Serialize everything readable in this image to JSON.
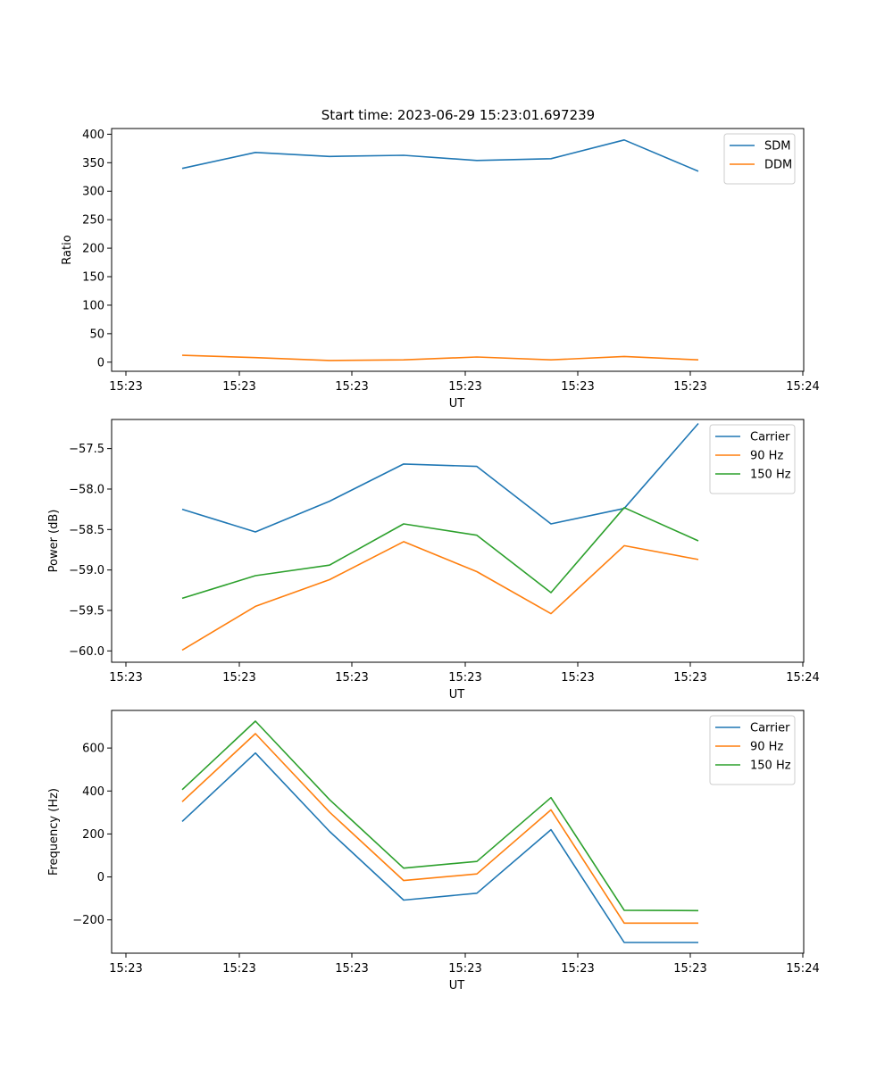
{
  "figure": {
    "title": "Start time: 2023-06-29 15:23:01.697239"
  },
  "chart_data": [
    {
      "type": "line",
      "title": "Start time: 2023-06-29 15:23:01.697239",
      "xlabel": "UT",
      "ylabel": "Ratio",
      "x_tick_labels": [
        "15:23",
        "15:23",
        "15:23",
        "15:23",
        "15:23",
        "15:23",
        "15:24"
      ],
      "ylim": [
        -16,
        410
      ],
      "yticks": [
        0,
        50,
        100,
        150,
        200,
        250,
        300,
        350,
        400
      ],
      "grid": false,
      "legend_position": "upper-right",
      "series": [
        {
          "name": "SDM",
          "color": "#1f77b4",
          "values": [
            340,
            368,
            361,
            363,
            354,
            357,
            390,
            335
          ]
        },
        {
          "name": "DDM",
          "color": "#ff7f0e",
          "values": [
            12,
            8,
            3,
            4,
            9,
            4,
            10,
            4
          ]
        }
      ]
    },
    {
      "type": "line",
      "title": "",
      "xlabel": "UT",
      "ylabel": "Power (dB)",
      "x_tick_labels": [
        "15:23",
        "15:23",
        "15:23",
        "15:23",
        "15:23",
        "15:23",
        "15:24"
      ],
      "ylim": [
        -60.14,
        -57.14
      ],
      "yticks": [
        -60.0,
        -59.5,
        -59.0,
        -58.5,
        -58.0,
        -57.5
      ],
      "ytick_labels": [
        "−60.0",
        "−59.5",
        "−59.0",
        "−58.5",
        "−58.0",
        "−57.5"
      ],
      "grid": false,
      "legend_position": "upper-right",
      "series": [
        {
          "name": "Carrier",
          "color": "#1f77b4",
          "values": [
            -58.25,
            -58.53,
            -58.15,
            -57.69,
            -57.72,
            -58.43,
            -58.24,
            -57.19
          ]
        },
        {
          "name": "90 Hz",
          "color": "#ff7f0e",
          "values": [
            -59.99,
            -59.45,
            -59.12,
            -58.65,
            -59.02,
            -59.54,
            -58.7,
            -58.87
          ]
        },
        {
          "name": "150 Hz",
          "color": "#2ca02c",
          "values": [
            -59.35,
            -59.07,
            -58.94,
            -58.43,
            -58.57,
            -59.28,
            -58.23,
            -58.64
          ]
        }
      ]
    },
    {
      "type": "line",
      "title": "",
      "xlabel": "UT",
      "ylabel": "Frequency (Hz)",
      "x_tick_labels": [
        "15:23",
        "15:23",
        "15:23",
        "15:23",
        "15:23",
        "15:23",
        "15:24"
      ],
      "ylim": [
        -355,
        775
      ],
      "yticks": [
        -200,
        0,
        200,
        400,
        600
      ],
      "ytick_labels": [
        "−200",
        "0",
        "200",
        "400",
        "600"
      ],
      "grid": false,
      "legend_position": "upper-right",
      "series": [
        {
          "name": "Carrier",
          "color": "#1f77b4",
          "values": [
            258,
            577,
            212,
            -108,
            -76,
            220,
            -305,
            -305
          ]
        },
        {
          "name": "90 Hz",
          "color": "#ff7f0e",
          "values": [
            350,
            667,
            302,
            -17,
            14,
            312,
            -215,
            -215
          ]
        },
        {
          "name": "150 Hz",
          "color": "#2ca02c",
          "values": [
            406,
            725,
            360,
            41,
            72,
            369,
            -155,
            -157
          ]
        }
      ]
    }
  ]
}
